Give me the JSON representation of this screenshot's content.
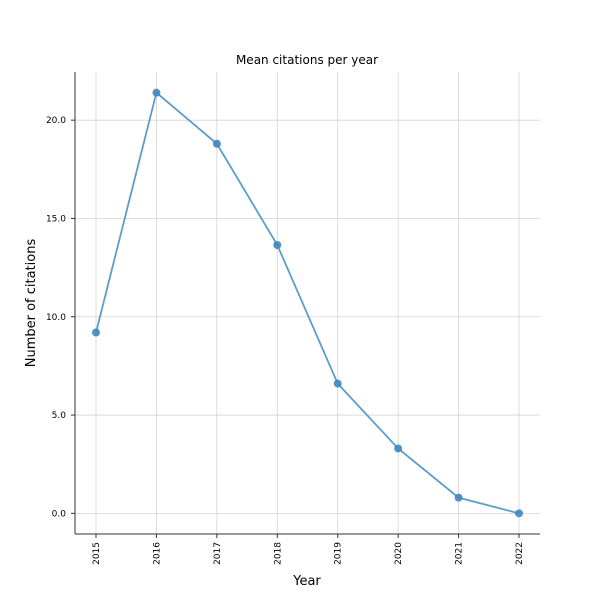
{
  "chart_data": {
    "type": "line",
    "title": "Mean citations per year",
    "xlabel": "Year",
    "ylabel": "Number of citations",
    "categories": [
      "2015",
      "2016",
      "2017",
      "2018",
      "2019",
      "2020",
      "2021",
      "2022"
    ],
    "yticks": [
      "0.0",
      "5.0",
      "10.0",
      "15.0",
      "20.0"
    ],
    "ylim": [
      -1.05,
      22.45
    ],
    "grid": true,
    "series": [
      {
        "values": [
          9.2,
          21.4,
          18.8,
          13.65,
          6.6,
          3.3,
          0.8,
          0.0
        ],
        "color": "#5b9ec9",
        "marker_color": "#3f87bf"
      }
    ]
  }
}
